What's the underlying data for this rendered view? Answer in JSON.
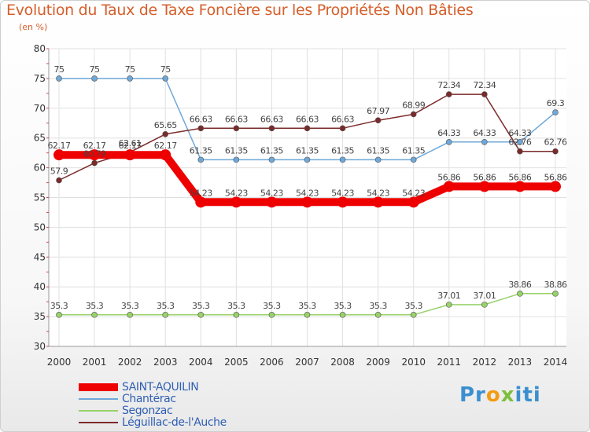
{
  "header": {
    "title": "Evolution du Taux de Taxe Foncière sur les Propriétés Non Bâties",
    "unit": "(en %)"
  },
  "chart_data": {
    "type": "line",
    "title": "Evolution du Taux de Taxe Foncière sur les Propriétés Non Bâties",
    "ylabel": "(en %)",
    "xlabel": "",
    "ylim": [
      30,
      80
    ],
    "yticks": [
      30,
      35,
      40,
      45,
      50,
      55,
      60,
      65,
      70,
      75,
      80
    ],
    "grid": true,
    "legend_position": "bottom-left",
    "x": [
      "2000",
      "2001",
      "2002",
      "2003",
      "2004",
      "2005",
      "2006",
      "2007",
      "2008",
      "2009",
      "2010",
      "2011",
      "2012",
      "2013",
      "2014"
    ],
    "series": [
      {
        "name": "SAINT-AQUILIN",
        "color": "#ee0000",
        "values": [
          62.17,
          62.17,
          62.17,
          62.17,
          54.23,
          54.23,
          54.23,
          54.23,
          54.23,
          54.23,
          54.23,
          56.86,
          56.86,
          56.86,
          56.86
        ],
        "labels": [
          "62.17",
          "62.17",
          "62.17",
          "62.17",
          "54.23",
          "54.23",
          "54.23",
          "54.23",
          "54.23",
          "54.23",
          "54.23",
          "56.86",
          "56.86",
          "56.86",
          "56.86"
        ]
      },
      {
        "name": "Chantérac",
        "color": "#6fa8d8",
        "values": [
          75,
          75,
          75,
          75,
          61.35,
          61.35,
          61.35,
          61.35,
          61.35,
          61.35,
          61.35,
          64.33,
          64.33,
          64.33,
          69.3
        ],
        "labels": [
          "75",
          "75",
          "75",
          "75",
          "61.35",
          "61.35",
          "61.35",
          "61.35",
          "61.35",
          "61.35",
          "61.35",
          "64.33",
          "64.33",
          "64.33",
          "69.3"
        ]
      },
      {
        "name": "Segonzac",
        "color": "#98d26a",
        "values": [
          35.3,
          35.3,
          35.3,
          35.3,
          35.3,
          35.3,
          35.3,
          35.3,
          35.3,
          35.3,
          35.3,
          37.01,
          37.01,
          38.86,
          38.86
        ],
        "labels": [
          "35.3",
          "35.3",
          "35.3",
          "35.3",
          "35.3",
          "35.3",
          "35.3",
          "35.3",
          "35.3",
          "35.3",
          "35.3",
          "37.01",
          "37.01",
          "38.86",
          "38.86"
        ]
      },
      {
        "name": "Léguillac-de-l'Auche",
        "color": "#7b2a2a",
        "values": [
          57.9,
          60.79,
          62.61,
          65.65,
          66.63,
          66.63,
          66.63,
          66.63,
          66.63,
          67.97,
          68.99,
          72.34,
          72.34,
          62.76,
          62.76
        ],
        "labels": [
          "57.9",
          "60.79",
          "62.61",
          "65.65",
          "66.63",
          "66.63",
          "66.63",
          "66.63",
          "66.63",
          "67.97",
          "68.99",
          "72.34",
          "72.34",
          "62.76",
          "62.76"
        ]
      }
    ]
  },
  "logo": {
    "part1": "Pr",
    "part2": "o",
    "part3": "x",
    "part4": "iti"
  }
}
